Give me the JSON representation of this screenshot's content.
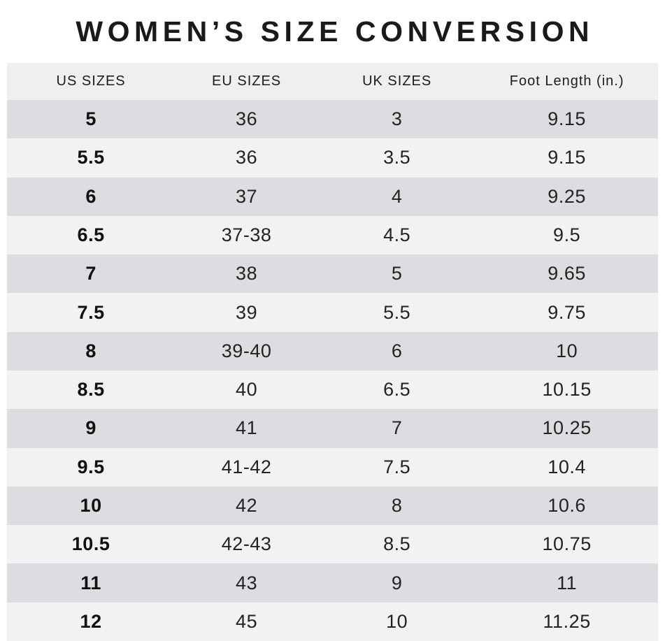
{
  "title": "WOMEN’S SIZE CONVERSION",
  "colors": {
    "page_background": "#ffffff",
    "header_row_background": "#efeff0",
    "dark_row_background": "#dcdde0",
    "light_row_background": "#f2f2f3",
    "text": "#1a1a1a"
  },
  "chart_data": {
    "type": "table",
    "title": "WOMEN’S SIZE CONVERSION",
    "columns": [
      "US SIZES",
      "EU SIZES",
      "UK SIZES",
      "Foot Length (in.)"
    ],
    "rows": [
      {
        "us": "5",
        "eu": "36",
        "uk": "3",
        "foot": "9.15"
      },
      {
        "us": "5.5",
        "eu": "36",
        "uk": "3.5",
        "foot": "9.15"
      },
      {
        "us": "6",
        "eu": "37",
        "uk": "4",
        "foot": "9.25"
      },
      {
        "us": "6.5",
        "eu": "37-38",
        "uk": "4.5",
        "foot": "9.5"
      },
      {
        "us": "7",
        "eu": "38",
        "uk": "5",
        "foot": "9.65"
      },
      {
        "us": "7.5",
        "eu": "39",
        "uk": "5.5",
        "foot": "9.75"
      },
      {
        "us": "8",
        "eu": "39-40",
        "uk": "6",
        "foot": "10"
      },
      {
        "us": "8.5",
        "eu": "40",
        "uk": "6.5",
        "foot": "10.15"
      },
      {
        "us": "9",
        "eu": "41",
        "uk": "7",
        "foot": "10.25"
      },
      {
        "us": "9.5",
        "eu": "41-42",
        "uk": "7.5",
        "foot": "10.4"
      },
      {
        "us": "10",
        "eu": "42",
        "uk": "8",
        "foot": "10.6"
      },
      {
        "us": "10.5",
        "eu": "42-43",
        "uk": "8.5",
        "foot": "10.75"
      },
      {
        "us": "11",
        "eu": "43",
        "uk": "9",
        "foot": "11"
      },
      {
        "us": "12",
        "eu": "45",
        "uk": "10",
        "foot": "11.25"
      }
    ],
    "layout": {
      "striped": true,
      "first_data_row_shade": "dark",
      "grid": false
    }
  }
}
